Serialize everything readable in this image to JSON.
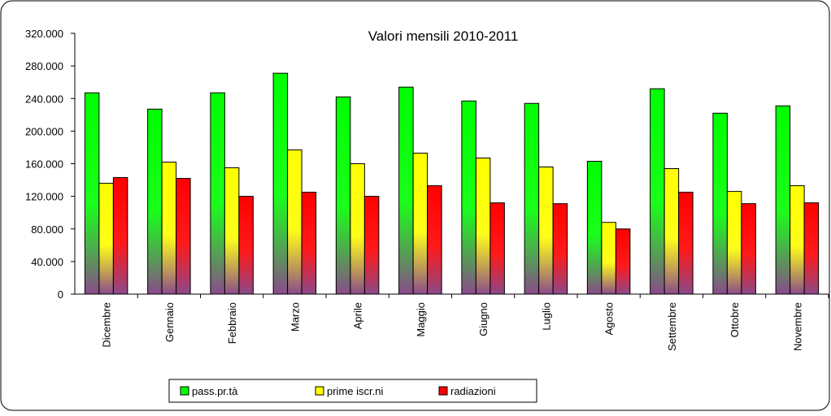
{
  "chart_data": {
    "type": "bar",
    "title": "Valori mensili 2010-2011",
    "categories": [
      "Dicembre",
      "Gennaio",
      "Febbraio",
      "Marzo",
      "Aprile",
      "Maggio",
      "Giugno",
      "Luglio",
      "Agosto",
      "Settembre",
      "Ottobre",
      "Novembre"
    ],
    "series": [
      {
        "name": "pass.pr.tà",
        "color": "#00ff00",
        "values": [
          247000,
          227000,
          247000,
          271000,
          242000,
          254000,
          237000,
          234000,
          163000,
          252000,
          222000,
          231000
        ]
      },
      {
        "name": "prime iscr.ni",
        "color": "#ffff00",
        "values": [
          136000,
          162000,
          155000,
          177000,
          160000,
          173000,
          167000,
          156000,
          88000,
          154000,
          126000,
          133000
        ]
      },
      {
        "name": "radiazioni",
        "color": "#ff0000",
        "values": [
          143000,
          142000,
          120000,
          125000,
          120000,
          133000,
          112000,
          111000,
          80000,
          125000,
          111000,
          112000
        ]
      }
    ],
    "ylim": [
      0,
      320000
    ],
    "yticks": [
      0,
      {
        "value": 40000,
        "label": "40.000"
      },
      {
        "value": 80000,
        "label": "80.000"
      },
      {
        "value": 120000,
        "label": "120.000"
      },
      {
        "value": 160000,
        "label": "160.000"
      },
      {
        "value": 200000,
        "label": "200.000"
      },
      {
        "value": 240000,
        "label": "240.000"
      },
      {
        "value": 280000,
        "label": "280.000"
      },
      {
        "value": 320000,
        "label": "320.000"
      }
    ],
    "grid": false,
    "legend": "bottom"
  }
}
